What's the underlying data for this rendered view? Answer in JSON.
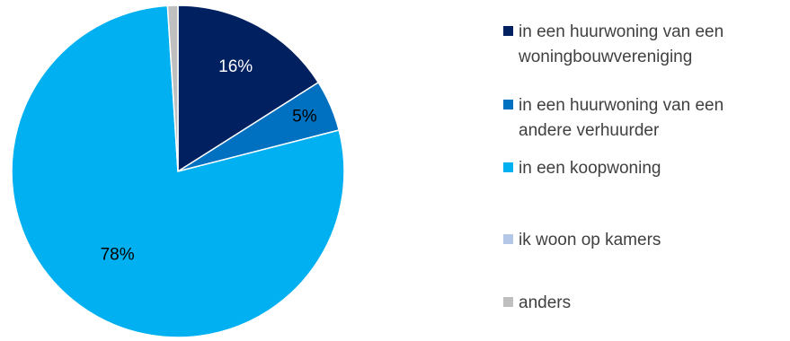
{
  "chart_data": {
    "type": "pie",
    "title": "",
    "slices": [
      {
        "label": "in een huurwoning van een woningbouwvereniging",
        "value": 16,
        "data_label": "16%",
        "color": "#002060"
      },
      {
        "label": "in een huurwoning van een andere verhuurder",
        "value": 5,
        "data_label": "5%",
        "color": "#0070C0"
      },
      {
        "label": "in een koopwoning",
        "value": 78,
        "data_label": "78%",
        "color": "#00B0F0"
      },
      {
        "label": "ik woon op kamers",
        "value": 0,
        "data_label": "",
        "color": "#B4C7E7"
      },
      {
        "label": "anders",
        "value": 1,
        "data_label": "",
        "color": "#BFBFBF"
      }
    ],
    "legend": {
      "position": "right",
      "entries": [
        {
          "line1": "in een huurwoning van een",
          "line2": "woningbouwvereniging"
        },
        {
          "line1": "in een huurwoning van een",
          "line2": "andere verhuurder"
        },
        {
          "line1": "in een koopwoning",
          "line2": ""
        },
        {
          "line1": "ik woon op kamers",
          "line2": ""
        },
        {
          "line1": "anders",
          "line2": ""
        }
      ]
    },
    "label_colors": {
      "dark": "#ffffff",
      "light": "#000000"
    }
  }
}
